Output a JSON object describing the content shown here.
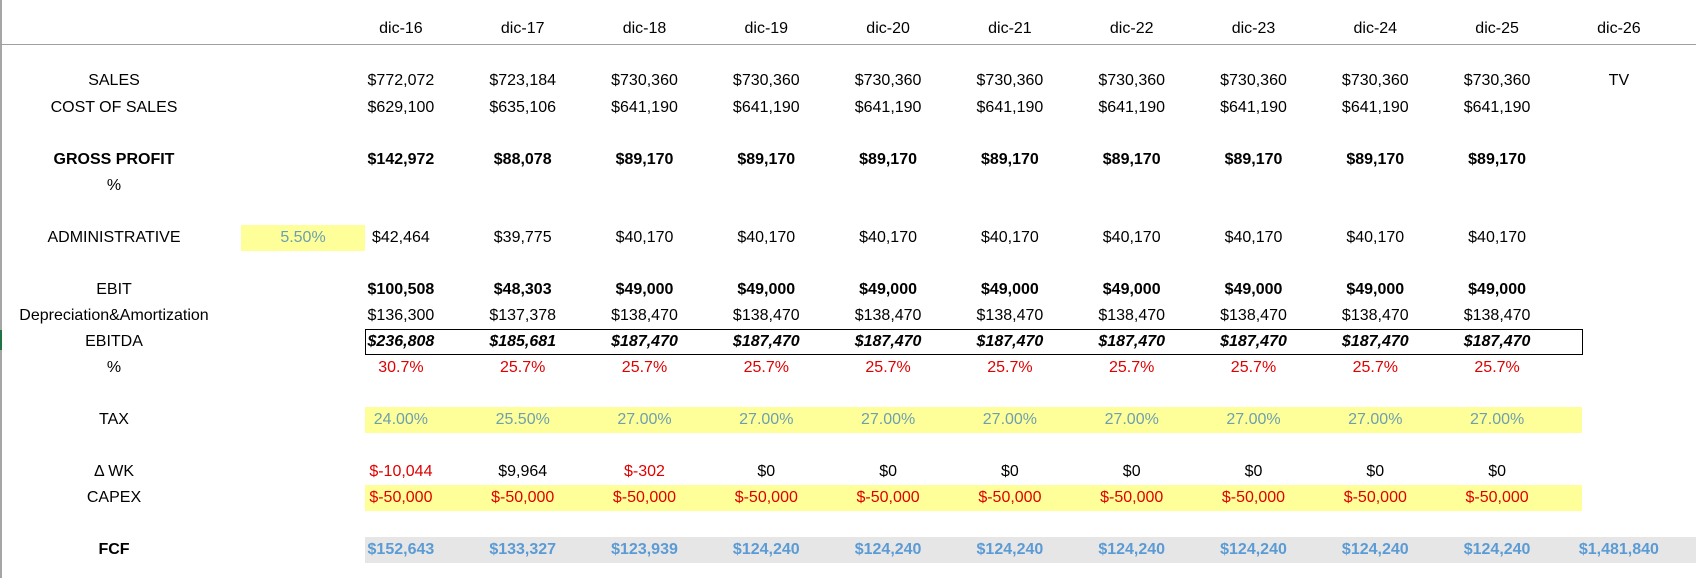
{
  "colors": {
    "input_fill": "#ffff99",
    "fcf_fill": "#e7e6e6",
    "negative": "#e00000",
    "link_blue": "#5b9bd5"
  },
  "headers": [
    "dic-16",
    "dic-17",
    "dic-18",
    "dic-19",
    "dic-20",
    "dic-21",
    "dic-22",
    "dic-23",
    "dic-24",
    "dic-25",
    "dic-26"
  ],
  "rows": [
    {
      "id": "sales",
      "label": "SALES",
      "values": [
        "$772,072",
        "$723,184",
        "$730,360",
        "$730,360",
        "$730,360",
        "$730,360",
        "$730,360",
        "$730,360",
        "$730,360",
        "$730,360",
        "TV"
      ]
    },
    {
      "id": "cost-of-sales",
      "label": "COST OF SALES",
      "values": [
        "$629,100",
        "$635,106",
        "$641,190",
        "$641,190",
        "$641,190",
        "$641,190",
        "$641,190",
        "$641,190",
        "$641,190",
        "$641,190"
      ]
    },
    {
      "id": "gross-profit",
      "label": "GROSS PROFIT",
      "values": [
        "$142,972",
        "$88,078",
        "$89,170",
        "$89,170",
        "$89,170",
        "$89,170",
        "$89,170",
        "$89,170",
        "$89,170",
        "$89,170"
      ]
    },
    {
      "id": "gross-margin",
      "label": "%",
      "values": []
    },
    {
      "id": "administrative",
      "label": "ADMINISTRATIVE",
      "rate": "5.50%",
      "values": [
        "$42,464",
        "$39,775",
        "$40,170",
        "$40,170",
        "$40,170",
        "$40,170",
        "$40,170",
        "$40,170",
        "$40,170",
        "$40,170"
      ]
    },
    {
      "id": "ebit",
      "label": "EBIT",
      "values": [
        "$100,508",
        "$48,303",
        "$49,000",
        "$49,000",
        "$49,000",
        "$49,000",
        "$49,000",
        "$49,000",
        "$49,000",
        "$49,000"
      ]
    },
    {
      "id": "da",
      "label": "Depreciation&Amortization",
      "values": [
        "$136,300",
        "$137,378",
        "$138,470",
        "$138,470",
        "$138,470",
        "$138,470",
        "$138,470",
        "$138,470",
        "$138,470",
        "$138,470"
      ]
    },
    {
      "id": "ebitda",
      "label": "EBITDA",
      "values": [
        "$236,808",
        "$185,681",
        "$187,470",
        "$187,470",
        "$187,470",
        "$187,470",
        "$187,470",
        "$187,470",
        "$187,470",
        "$187,470"
      ]
    },
    {
      "id": "ebitda-margin",
      "label": "%",
      "values": [
        "30.7%",
        "25.7%",
        "25.7%",
        "25.7%",
        "25.7%",
        "25.7%",
        "25.7%",
        "25.7%",
        "25.7%",
        "25.7%"
      ]
    },
    {
      "id": "tax",
      "label": "TAX",
      "values": [
        "24.00%",
        "25.50%",
        "27.00%",
        "27.00%",
        "27.00%",
        "27.00%",
        "27.00%",
        "27.00%",
        "27.00%",
        "27.00%"
      ]
    },
    {
      "id": "delta-wk",
      "label": "Δ WK",
      "values": [
        "$-10,044",
        "$9,964",
        "$-302",
        "$0",
        "$0",
        "$0",
        "$0",
        "$0",
        "$0",
        "$0"
      ]
    },
    {
      "id": "capex",
      "label": "CAPEX",
      "values": [
        "$-50,000",
        "$-50,000",
        "$-50,000",
        "$-50,000",
        "$-50,000",
        "$-50,000",
        "$-50,000",
        "$-50,000",
        "$-50,000",
        "$-50,000"
      ]
    },
    {
      "id": "fcf",
      "label": "FCF",
      "values": [
        "$152,643",
        "$133,327",
        "$123,939",
        "$124,240",
        "$124,240",
        "$124,240",
        "$124,240",
        "$124,240",
        "$124,240",
        "$124,240",
        "$1,481,840"
      ]
    }
  ]
}
